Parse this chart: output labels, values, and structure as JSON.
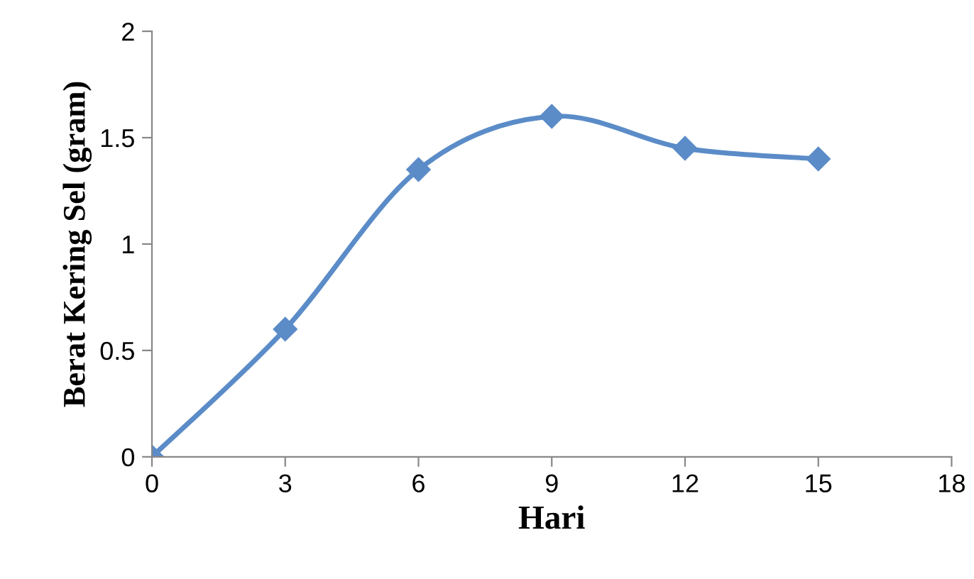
{
  "chart_data": {
    "type": "line",
    "xlabel": "Hari",
    "ylabel": "Berat Kering Sel (gram)",
    "x": [
      0,
      3,
      6,
      9,
      12,
      15
    ],
    "series": [
      {
        "color": "#5b8cc8",
        "values": [
          0,
          0.6,
          1.35,
          1.6,
          1.45,
          1.4
        ]
      }
    ],
    "xlim": [
      0,
      18
    ],
    "xticks": [
      0,
      3,
      6,
      9,
      12,
      15,
      18
    ],
    "ylim": [
      0,
      2
    ],
    "yticks": [
      0,
      0.5,
      1,
      1.5,
      2
    ],
    "grid": false,
    "marker": "diamond",
    "line_style": "solid"
  }
}
